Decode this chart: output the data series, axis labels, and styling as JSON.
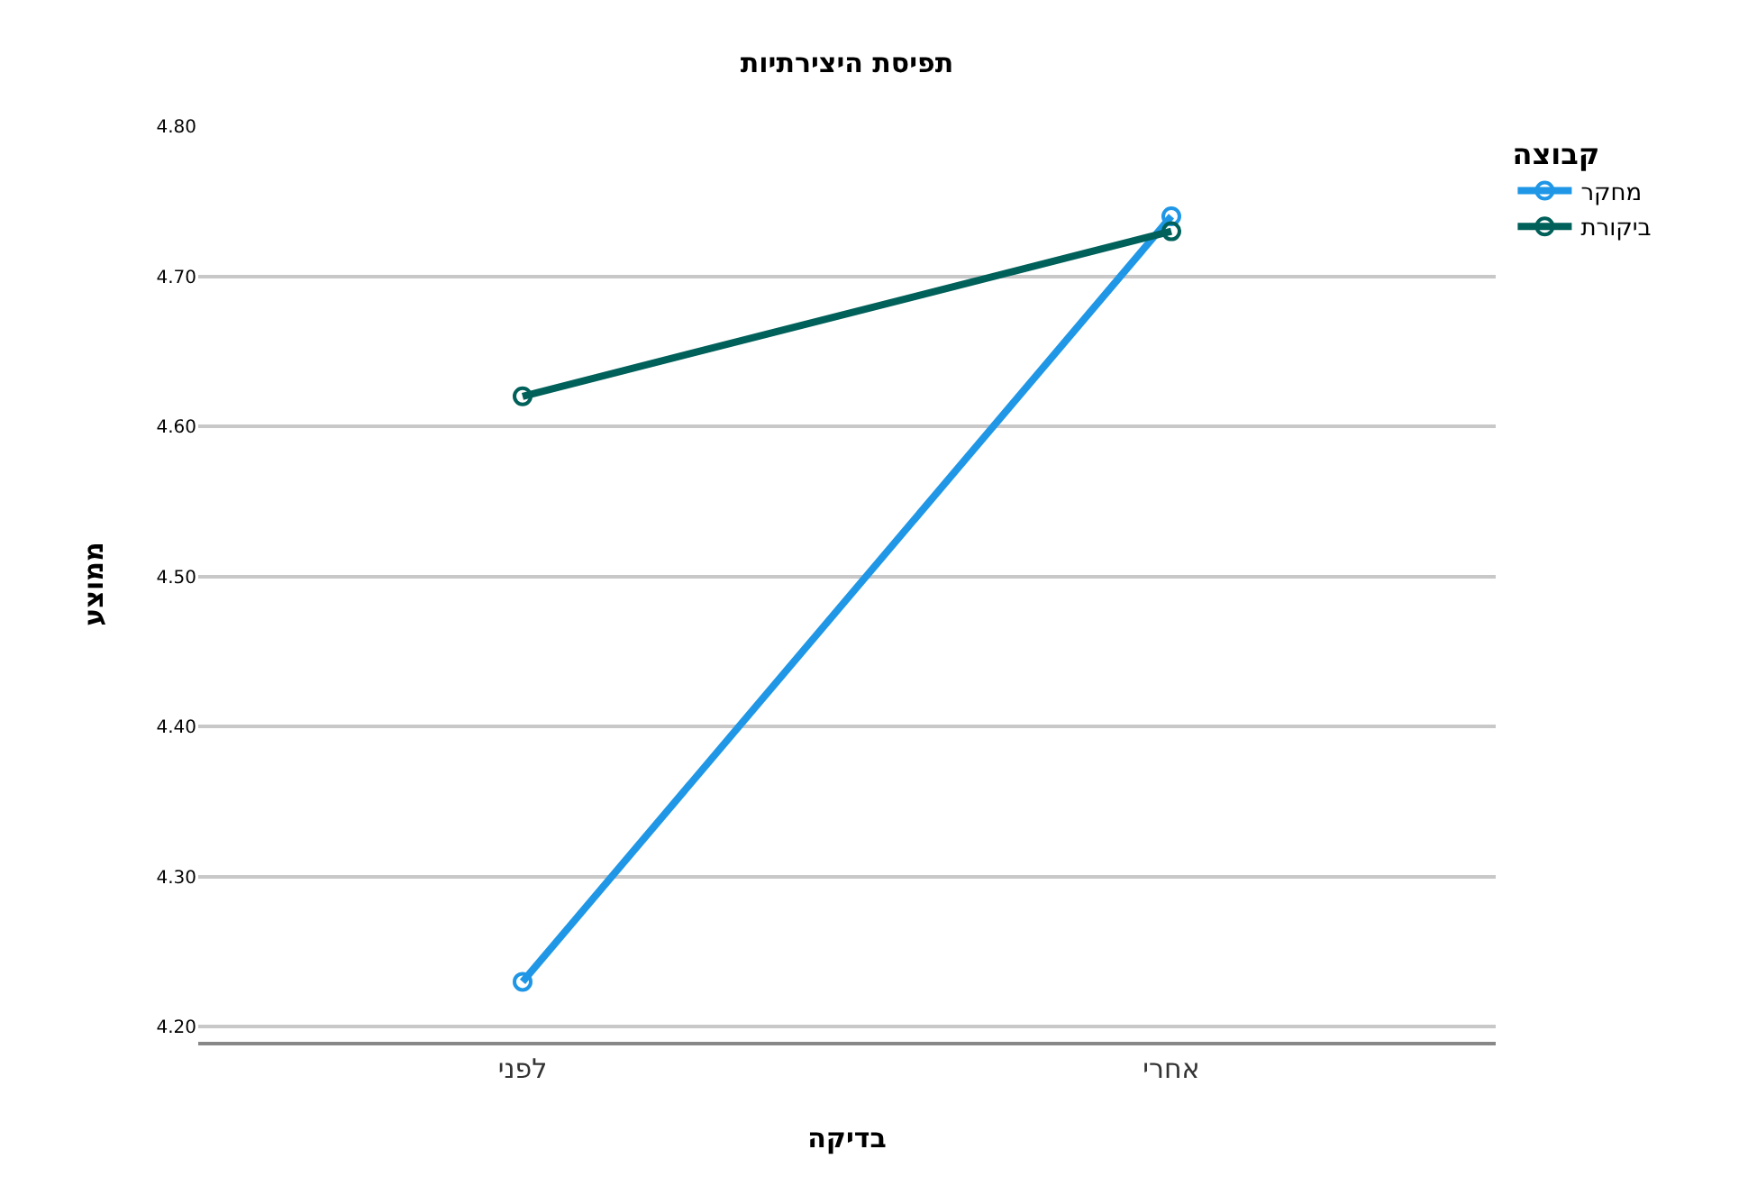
{
  "chart_data": {
    "type": "line",
    "title": "תפיסת היצירתיות",
    "xlabel": "בדיקה",
    "ylabel": "ממוצע",
    "legend_title": "קבוצה",
    "categories": [
      "לפני",
      "אחרי"
    ],
    "series": [
      {
        "name": "מחקר",
        "color": "#1f97e6",
        "values": [
          4.23,
          4.74
        ]
      },
      {
        "name": "ביקורת",
        "color": "#00605a",
        "values": [
          4.62,
          4.73
        ]
      }
    ],
    "ylim": [
      4.19,
      4.8
    ],
    "yticks": [
      {
        "value": 4.2,
        "label": "4.20"
      },
      {
        "value": 4.3,
        "label": "4.30"
      },
      {
        "value": 4.4,
        "label": "4.40"
      },
      {
        "value": 4.5,
        "label": "4.50"
      },
      {
        "value": 4.6,
        "label": "4.60"
      },
      {
        "value": 4.7,
        "label": "4.70"
      },
      {
        "value": 4.8,
        "label": "4.80"
      }
    ],
    "grid": "y",
    "legend": "top right",
    "marker": "circle",
    "line_style": "solid"
  }
}
